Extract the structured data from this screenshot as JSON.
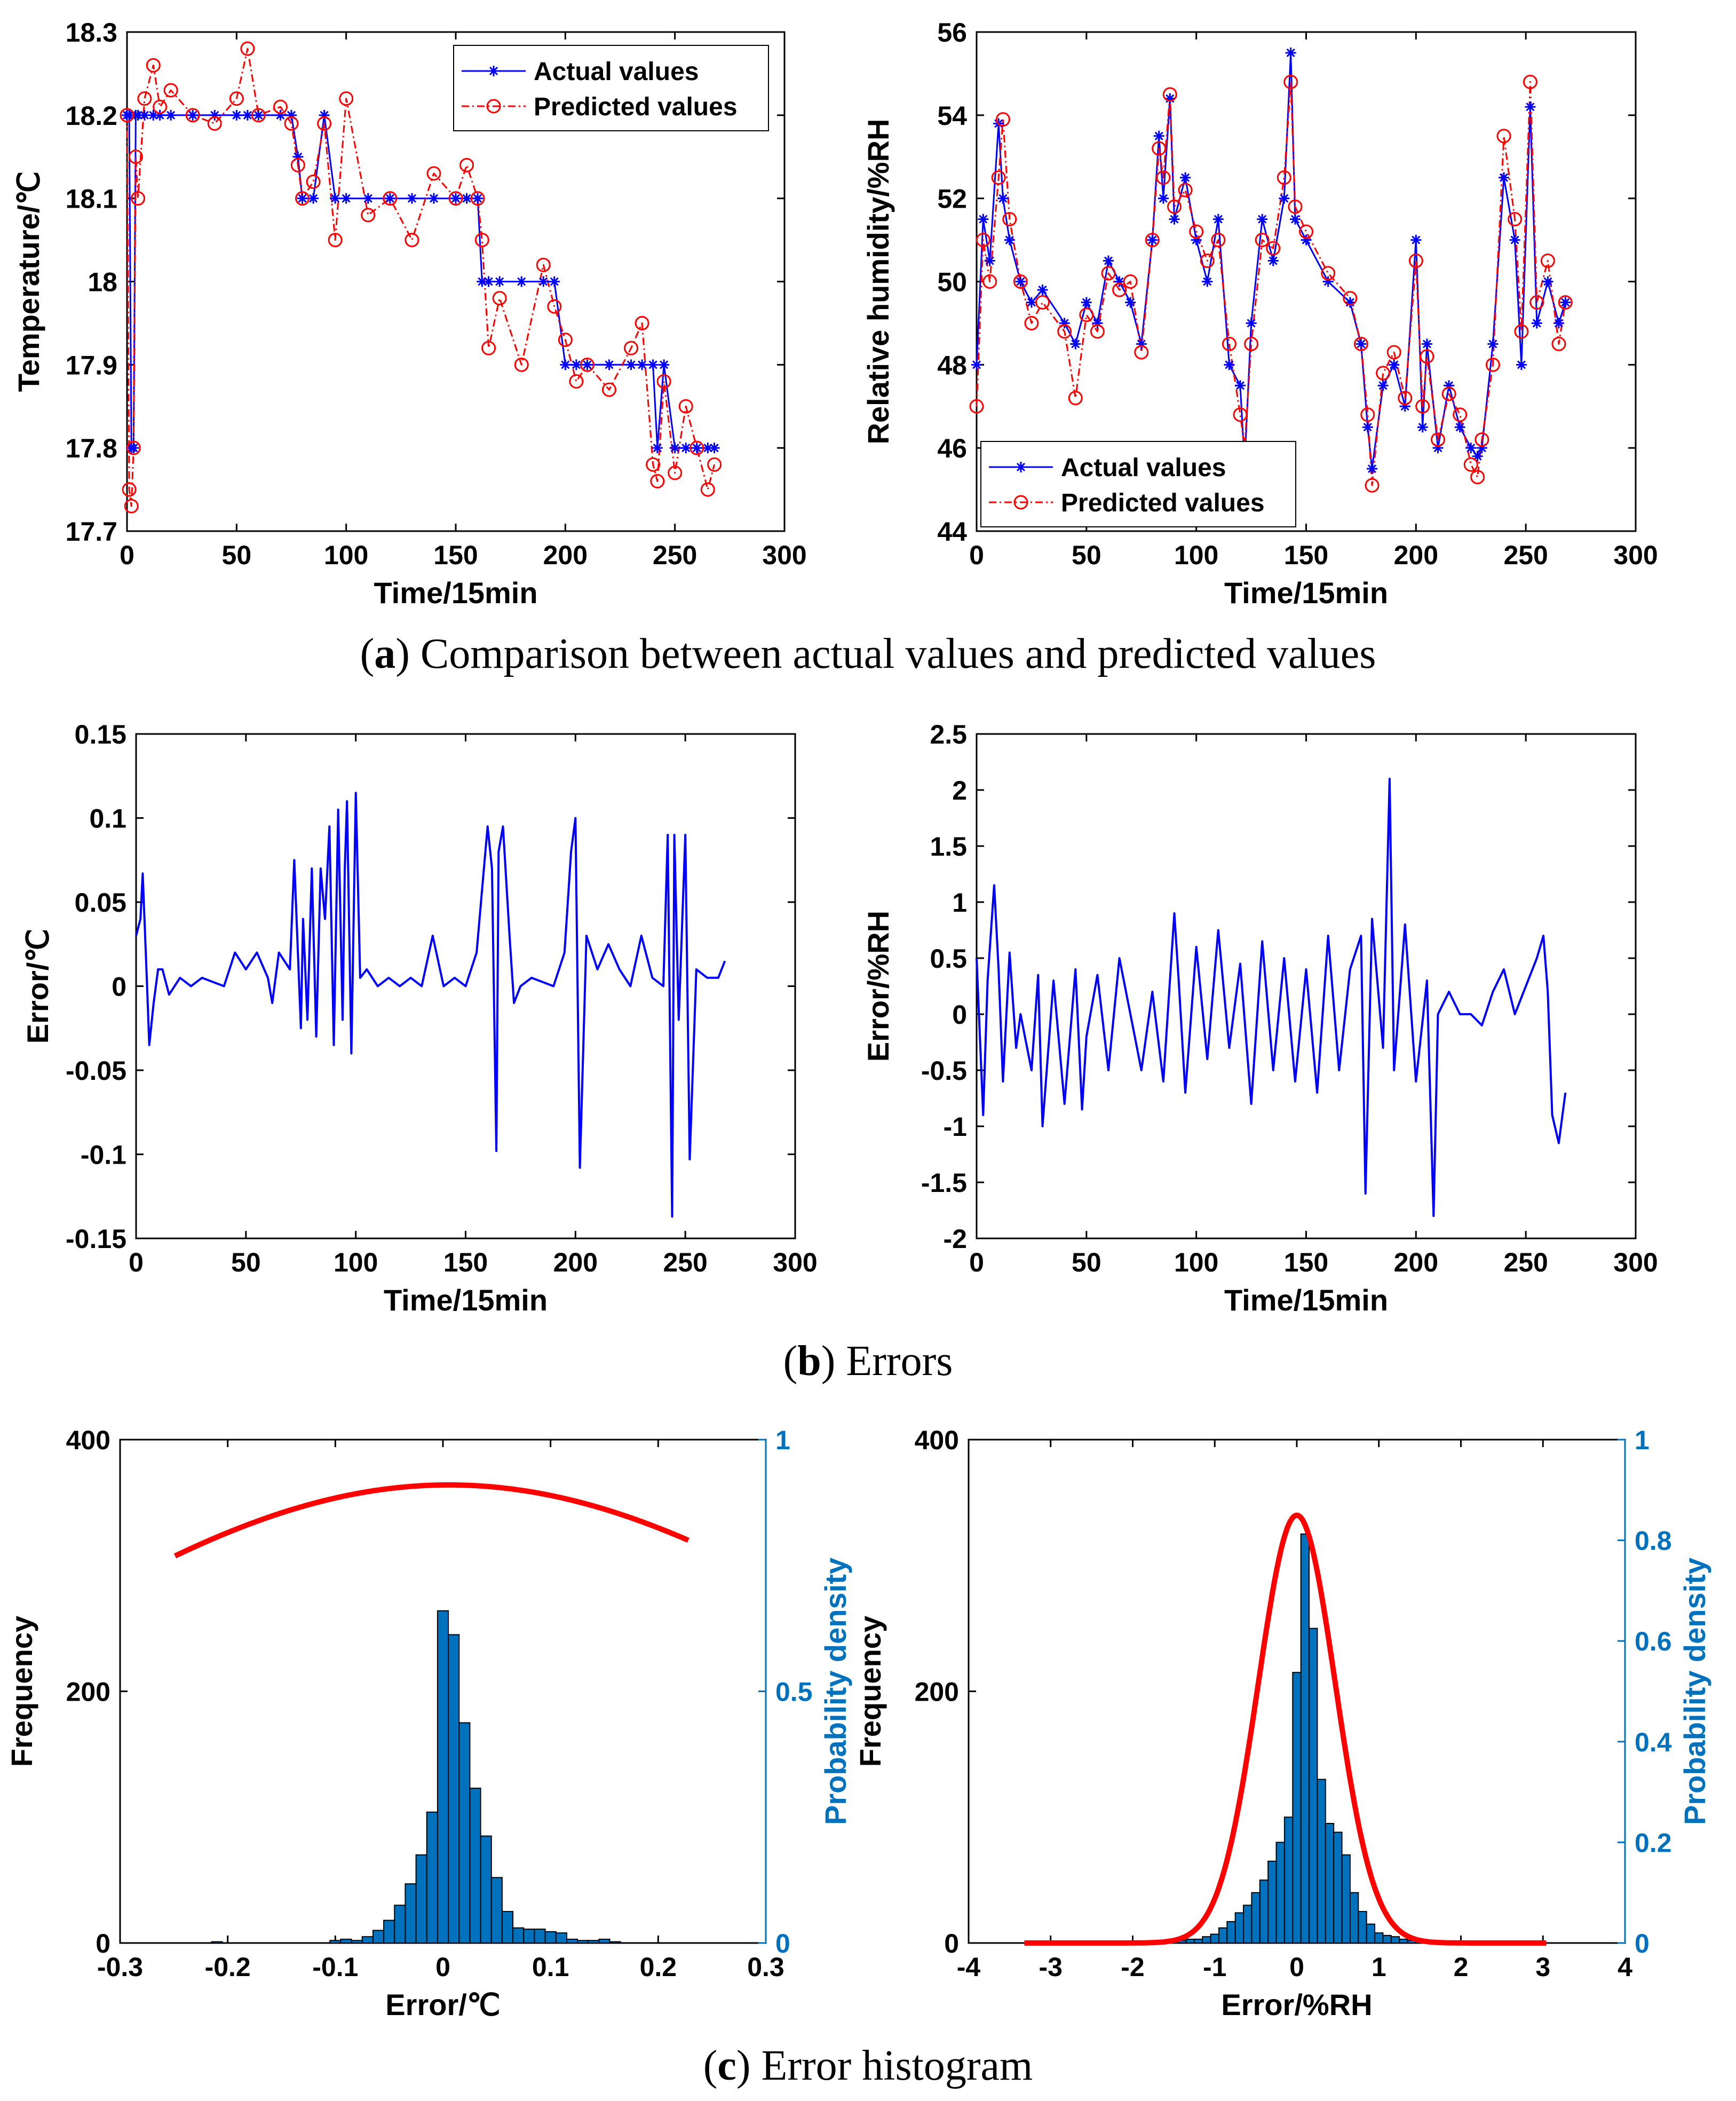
{
  "captions": {
    "a": {
      "letter": "a",
      "text": " Comparison between actual values and predicted values"
    },
    "b": {
      "letter": "b",
      "text": " Errors"
    },
    "c": {
      "letter": "c",
      "text": " Error histogram"
    }
  },
  "colors": {
    "actual": "#0000ff",
    "predicted": "#ff0000",
    "error_line": "#0000ff",
    "bars": "#0072bd",
    "right_axis": "#0072bd",
    "curve": "#ff0000",
    "axis": "#000000"
  },
  "chart_data": [
    {
      "id": "temp_compare",
      "type": "line",
      "xlabel": "Time/15min",
      "ylabel": "Temperature/℃",
      "xlim": [
        0,
        300
      ],
      "ylim": [
        17.7,
        18.3
      ],
      "xticks": [
        "0",
        "50",
        "100",
        "150",
        "200",
        "250",
        "300"
      ],
      "yticks": [
        "17.7",
        "17.8",
        "17.9",
        "18",
        "18.1",
        "18.2",
        "18.3"
      ],
      "legend": {
        "position": "top-right",
        "entries": [
          "Actual values",
          "Predicted values"
        ]
      },
      "x": [
        0,
        1,
        2,
        3,
        4,
        5,
        8,
        12,
        15,
        20,
        30,
        40,
        50,
        55,
        60,
        70,
        75,
        78,
        80,
        85,
        90,
        95,
        100,
        110,
        120,
        130,
        140,
        150,
        155,
        160,
        162,
        165,
        170,
        180,
        190,
        195,
        200,
        205,
        210,
        220,
        230,
        235,
        240,
        242,
        245,
        250,
        255,
        260,
        265,
        268
      ],
      "series": [
        {
          "name": "Actual values",
          "marker": "asterisk",
          "values": [
            18.2,
            18.2,
            17.8,
            17.8,
            18.2,
            18.2,
            18.2,
            18.2,
            18.2,
            18.2,
            18.2,
            18.2,
            18.2,
            18.2,
            18.2,
            18.2,
            18.2,
            18.15,
            18.1,
            18.1,
            18.2,
            18.1,
            18.1,
            18.1,
            18.1,
            18.1,
            18.1,
            18.1,
            18.1,
            18.1,
            18.0,
            18.0,
            18.0,
            18.0,
            18.0,
            18.0,
            17.9,
            17.9,
            17.9,
            17.9,
            17.9,
            17.9,
            17.9,
            17.8,
            17.9,
            17.8,
            17.8,
            17.8,
            17.8,
            17.8
          ]
        },
        {
          "name": "Predicted values",
          "marker": "circle",
          "values": [
            18.2,
            17.75,
            17.73,
            17.8,
            18.15,
            18.1,
            18.22,
            18.26,
            18.21,
            18.23,
            18.2,
            18.19,
            18.22,
            18.28,
            18.2,
            18.21,
            18.19,
            18.14,
            18.1,
            18.12,
            18.19,
            18.05,
            18.22,
            18.08,
            18.1,
            18.05,
            18.13,
            18.1,
            18.14,
            18.1,
            18.05,
            17.92,
            17.98,
            17.9,
            18.02,
            17.97,
            17.93,
            17.88,
            17.9,
            17.87,
            17.92,
            17.95,
            17.78,
            17.76,
            17.88,
            17.77,
            17.85,
            17.8,
            17.75,
            17.78
          ]
        }
      ]
    },
    {
      "id": "rh_compare",
      "type": "line",
      "xlabel": "Time/15min",
      "ylabel": "Relative humidity/%RH",
      "xlim": [
        0,
        300
      ],
      "ylim": [
        44,
        56
      ],
      "xticks": [
        "0",
        "50",
        "100",
        "150",
        "200",
        "250",
        "300"
      ],
      "yticks": [
        "44",
        "46",
        "48",
        "50",
        "52",
        "54",
        "56"
      ],
      "legend": {
        "position": "bottom-left",
        "entries": [
          "Actual values",
          "Predicted values"
        ]
      },
      "x": [
        0,
        3,
        6,
        10,
        12,
        15,
        20,
        25,
        30,
        40,
        45,
        50,
        55,
        60,
        65,
        70,
        75,
        80,
        83,
        85,
        88,
        90,
        95,
        100,
        105,
        110,
        115,
        120,
        122,
        125,
        130,
        135,
        140,
        143,
        145,
        150,
        160,
        170,
        175,
        178,
        180,
        185,
        190,
        195,
        200,
        203,
        205,
        210,
        215,
        220,
        225,
        228,
        230,
        235,
        240,
        245,
        248,
        252,
        255,
        260,
        265,
        268
      ],
      "series": [
        {
          "name": "Actual values",
          "marker": "asterisk",
          "values": [
            48.0,
            51.5,
            50.5,
            53.8,
            52.0,
            51.0,
            50.0,
            49.5,
            49.8,
            49.0,
            48.5,
            49.5,
            49.0,
            50.5,
            50.0,
            49.5,
            48.5,
            51.0,
            53.5,
            52.0,
            54.4,
            51.5,
            52.5,
            51.0,
            50.0,
            51.5,
            48.0,
            47.5,
            45.6,
            49.0,
            51.5,
            50.5,
            52.0,
            55.5,
            51.5,
            51.0,
            50.0,
            49.5,
            48.5,
            46.5,
            45.5,
            47.5,
            48.0,
            47.0,
            51.0,
            46.5,
            48.5,
            46.0,
            47.5,
            46.5,
            46.0,
            45.8,
            46.0,
            48.5,
            52.5,
            51.0,
            48.0,
            54.2,
            49.0,
            50.0,
            49.0,
            49.5
          ]
        },
        {
          "name": "Predicted values",
          "marker": "circle",
          "values": [
            47.0,
            51.0,
            50.0,
            52.5,
            53.9,
            51.5,
            50.0,
            49.0,
            49.5,
            48.8,
            47.2,
            49.2,
            48.8,
            50.2,
            49.8,
            50.0,
            48.3,
            51.0,
            53.2,
            52.5,
            54.5,
            51.8,
            52.2,
            51.2,
            50.5,
            51.0,
            48.5,
            46.8,
            46.0,
            48.5,
            51.0,
            50.8,
            52.5,
            54.8,
            51.8,
            51.2,
            50.2,
            49.6,
            48.5,
            46.8,
            45.1,
            47.8,
            48.3,
            47.2,
            50.5,
            47.0,
            48.2,
            46.2,
            47.3,
            46.8,
            45.6,
            45.3,
            46.2,
            48.0,
            53.5,
            51.5,
            48.8,
            54.8,
            49.5,
            50.5,
            48.5,
            49.5
          ]
        }
      ]
    },
    {
      "id": "temp_error",
      "type": "line",
      "xlabel": "Time/15min",
      "ylabel": "Error/℃",
      "xlim": [
        0,
        300
      ],
      "ylim": [
        -0.15,
        0.15
      ],
      "xticks": [
        "0",
        "50",
        "100",
        "150",
        "200",
        "250",
        "300"
      ],
      "yticks": [
        "-0.15",
        "-0.1",
        "-0.05",
        "0",
        "0.05",
        "0.1",
        "0.15"
      ],
      "x": [
        0,
        2,
        3,
        5,
        6,
        8,
        10,
        12,
        15,
        20,
        25,
        30,
        40,
        45,
        50,
        55,
        60,
        62,
        65,
        70,
        72,
        75,
        76,
        78,
        80,
        82,
        84,
        86,
        88,
        90,
        92,
        94,
        95,
        96,
        98,
        100,
        102,
        105,
        110,
        115,
        120,
        125,
        130,
        135,
        140,
        145,
        150,
        155,
        158,
        160,
        162,
        164,
        165,
        167,
        170,
        172,
        175,
        180,
        190,
        195,
        198,
        200,
        202,
        205,
        210,
        215,
        220,
        225,
        230,
        235,
        240,
        242,
        244,
        245,
        247,
        250,
        252,
        255,
        260,
        265,
        268
      ],
      "values": [
        0.03,
        0.04,
        0.067,
        0.0,
        -0.035,
        -0.01,
        0.01,
        0.01,
        -0.005,
        0.005,
        0.0,
        0.005,
        0.0,
        0.02,
        0.01,
        0.02,
        0.005,
        -0.01,
        0.02,
        0.01,
        0.075,
        -0.025,
        0.04,
        -0.02,
        0.07,
        -0.03,
        0.07,
        0.04,
        0.095,
        -0.035,
        0.105,
        -0.02,
        0.07,
        0.11,
        -0.04,
        0.115,
        0.005,
        0.01,
        0.0,
        0.005,
        0.0,
        0.005,
        0.0,
        0.03,
        0.0,
        0.005,
        0.0,
        0.02,
        0.065,
        0.095,
        0.07,
        -0.098,
        0.08,
        0.095,
        0.03,
        -0.01,
        0.0,
        0.005,
        0.0,
        0.02,
        0.08,
        0.1,
        -0.108,
        0.03,
        0.01,
        0.025,
        0.01,
        0.0,
        0.03,
        0.005,
        0.0,
        0.09,
        -0.137,
        0.09,
        -0.02,
        0.09,
        -0.103,
        0.01,
        0.005,
        0.005,
        0.015
      ]
    },
    {
      "id": "rh_error",
      "type": "line",
      "xlabel": "Time/15min",
      "ylabel": "Error/%RH",
      "xlim": [
        0,
        300
      ],
      "ylim": [
        -2,
        2.5
      ],
      "xticks": [
        "0",
        "50",
        "100",
        "150",
        "200",
        "250",
        "300"
      ],
      "yticks": [
        "-2",
        "-1.5",
        "-1",
        "-0.5",
        "0",
        "0.5",
        "1",
        "1.5",
        "2",
        "2.5"
      ],
      "x": [
        0,
        3,
        5,
        8,
        10,
        12,
        15,
        18,
        20,
        25,
        28,
        30,
        35,
        40,
        45,
        48,
        50,
        55,
        60,
        65,
        70,
        75,
        80,
        85,
        90,
        92,
        95,
        100,
        105,
        110,
        115,
        120,
        125,
        130,
        135,
        140,
        145,
        150,
        155,
        160,
        165,
        170,
        175,
        177,
        180,
        185,
        188,
        190,
        195,
        200,
        205,
        208,
        210,
        215,
        220,
        225,
        230,
        235,
        240,
        245,
        250,
        255,
        258,
        260,
        262,
        265,
        268
      ],
      "values": [
        0.5,
        -0.9,
        0.3,
        1.15,
        0.4,
        -0.6,
        0.55,
        -0.3,
        0.0,
        -0.5,
        0.35,
        -1.0,
        0.3,
        -0.8,
        0.4,
        -0.85,
        -0.2,
        0.35,
        -0.5,
        0.5,
        0.0,
        -0.5,
        0.2,
        -0.6,
        0.9,
        0.3,
        -0.7,
        0.6,
        -0.4,
        0.75,
        -0.3,
        0.45,
        -0.8,
        0.65,
        -0.5,
        0.5,
        -0.6,
        0.4,
        -0.7,
        0.7,
        -0.5,
        0.4,
        0.7,
        -1.6,
        0.85,
        -0.3,
        2.1,
        -0.5,
        0.8,
        -0.6,
        0.3,
        -1.8,
        0.0,
        0.2,
        0.0,
        0.0,
        -0.1,
        0.2,
        0.4,
        0.0,
        0.25,
        0.5,
        0.7,
        0.2,
        -0.9,
        -1.15,
        -0.7
      ]
    },
    {
      "id": "temp_hist",
      "type": "bar",
      "xlabel": "Error/℃",
      "ylabel": "Frequency",
      "y2label": "Probability density",
      "xlim": [
        -0.3,
        0.3
      ],
      "ylim": [
        0,
        400
      ],
      "y2lim": [
        0,
        1
      ],
      "xticks": [
        "-0.3",
        "-0.2",
        "-0.1",
        "0",
        "0.1",
        "0.2",
        "0.3"
      ],
      "yticks": [
        "0",
        "200",
        "400"
      ],
      "y2ticks": [
        "0",
        "0.5",
        "1"
      ],
      "bin_width": 0.01,
      "x": [
        -0.21,
        -0.1,
        -0.09,
        -0.08,
        -0.07,
        -0.06,
        -0.05,
        -0.04,
        -0.03,
        -0.02,
        -0.01,
        0.0,
        0.01,
        0.02,
        0.03,
        0.04,
        0.05,
        0.06,
        0.07,
        0.08,
        0.09,
        0.1,
        0.11,
        0.12,
        0.13,
        0.14,
        0.15,
        0.16
      ],
      "values": [
        1,
        2,
        3,
        2,
        5,
        10,
        18,
        30,
        47,
        70,
        104,
        264,
        245,
        175,
        123,
        85,
        52,
        25,
        12,
        11,
        11,
        9,
        8,
        3,
        2,
        2,
        3,
        1
      ],
      "curve": {
        "name": "Probability density",
        "mean": 0.0055,
        "peak": 0.91
      }
    },
    {
      "id": "rh_hist",
      "type": "bar",
      "xlabel": "Error/%RH",
      "ylabel": "Frequency",
      "y2label": "Probability density",
      "xlim": [
        -4,
        4
      ],
      "ylim": [
        0,
        400
      ],
      "y2lim": [
        0,
        1
      ],
      "xticks": [
        "-4",
        "-3",
        "-2",
        "-1",
        "0",
        "1",
        "2",
        "3",
        "4"
      ],
      "yticks": [
        "0",
        "200",
        "400"
      ],
      "y2ticks": [
        "0",
        "0.2",
        "0.4",
        "0.6",
        "0.8",
        "1"
      ],
      "bin_width": 0.1,
      "x": [
        -1.6,
        -1.5,
        -1.4,
        -1.3,
        -1.2,
        -1.1,
        -1.0,
        -0.9,
        -0.8,
        -0.7,
        -0.6,
        -0.5,
        -0.4,
        -0.3,
        -0.2,
        -0.1,
        0.0,
        0.1,
        0.2,
        0.3,
        0.4,
        0.5,
        0.6,
        0.7,
        0.8,
        0.9,
        1.0,
        1.1,
        1.2,
        1.3,
        1.4,
        1.5,
        1.6
      ],
      "values": [
        1,
        2,
        2,
        3,
        3,
        5,
        7,
        12,
        17,
        24,
        30,
        40,
        50,
        65,
        80,
        100,
        215,
        325,
        250,
        130,
        95,
        88,
        70,
        40,
        25,
        15,
        8,
        6,
        5,
        3,
        2,
        2,
        1
      ],
      "curve": {
        "name": "Probability density",
        "mean": 0.0,
        "peak": 0.85
      }
    }
  ]
}
